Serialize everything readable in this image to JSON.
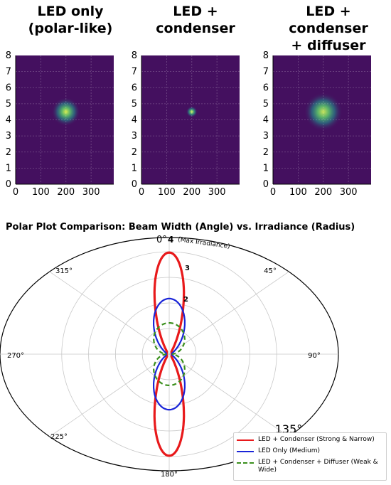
{
  "panels": [
    {
      "title": "LED only\n(polar-like)",
      "spot": "broad"
    },
    {
      "title": "LED +\ncondenser",
      "spot": "tight"
    },
    {
      "title": "LED +\ncondenser\n+ diffuser",
      "spot": "diffuse"
    }
  ],
  "heatmap_axes": {
    "y_ticks": [
      "0",
      "1",
      "2",
      "3",
      "4",
      "5",
      "6",
      "7",
      "8"
    ],
    "x_ticks": [
      "0",
      "100",
      "200",
      "300"
    ]
  },
  "polar": {
    "title": "Polar Plot Comparison: Beam Width (Angle) vs. Irradiance (Radius)",
    "zero_label": "0°",
    "max_label": "(Max Irradiance)",
    "r_ticks": [
      "4",
      "3",
      "2"
    ],
    "angle_labels": [
      "315°",
      "45°",
      "270°",
      "90°",
      "225°",
      "135°",
      "180°"
    ]
  },
  "legend": [
    {
      "label": "LED + Condenser (Strong & Narrow)",
      "color": "#e8191b",
      "style": "solid"
    },
    {
      "label": "LED Only (Medium)",
      "color": "#1a25d8",
      "style": "solid"
    },
    {
      "label": "LED + Condenser + Diffuser (Weak & Wide)",
      "color": "#3a8f1c",
      "style": "dashed"
    }
  ],
  "chart_data": [
    {
      "type": "heatmap",
      "title": "LED only (polar-like)",
      "x_ticks": [
        0,
        100,
        200,
        300
      ],
      "y_ticks": [
        0,
        1,
        2,
        3,
        4,
        5,
        6,
        7,
        8
      ],
      "xlim": [
        0,
        390
      ],
      "ylim": [
        0,
        8
      ],
      "peak": {
        "x": 200,
        "y": 4.5
      },
      "spot_radius": 0.9,
      "colors": {
        "background": "#44105f",
        "peak": "#d7ee4e"
      }
    },
    {
      "type": "heatmap",
      "title": "LED + condenser",
      "x_ticks": [
        0,
        100,
        200,
        300
      ],
      "y_ticks": [
        0,
        1,
        2,
        3,
        4,
        5,
        6,
        7,
        8
      ],
      "xlim": [
        0,
        390
      ],
      "ylim": [
        0,
        8
      ],
      "peak": {
        "x": 200,
        "y": 4.5
      },
      "spot_radius": 0.35,
      "colors": {
        "background": "#44105f",
        "peak": "#f0f56a"
      }
    },
    {
      "type": "heatmap",
      "title": "LED + condenser + diffuser",
      "x_ticks": [
        0,
        100,
        200,
        300
      ],
      "y_ticks": [
        0,
        1,
        2,
        3,
        4,
        5,
        6,
        7,
        8
      ],
      "xlim": [
        0,
        390
      ],
      "ylim": [
        0,
        8
      ],
      "peak": {
        "x": 200,
        "y": 4.5
      },
      "spot_radius": 1.2,
      "colors": {
        "background": "#44105f",
        "peak": "#c8e35a"
      }
    },
    {
      "type": "line",
      "polar": true,
      "title": "Polar Plot Comparison: Beam Width (Angle) vs. Irradiance (Radius)",
      "theta_unit": "degrees",
      "theta_zero": "top",
      "r_max": 4,
      "r_ticks": [
        1,
        2,
        3,
        4
      ],
      "angle_ticks": [
        0,
        45,
        90,
        135,
        180,
        225,
        270,
        315
      ],
      "grid": true,
      "legend_position": "bottom-right",
      "series": [
        {
          "name": "LED + Condenser (Strong & Narrow)",
          "peak_r": 3.85,
          "exponent": 16,
          "color": "#e8191b",
          "style": "solid"
        },
        {
          "name": "LED Only (Medium)",
          "peak_r": 2.05,
          "exponent": 4,
          "color": "#1a25d8",
          "style": "solid"
        },
        {
          "name": "LED + Condenser + Diffuser (Weak & Wide)",
          "peak_r": 1.1,
          "exponent": 1,
          "color": "#3a8f1c",
          "style": "dashed"
        }
      ]
    }
  ]
}
